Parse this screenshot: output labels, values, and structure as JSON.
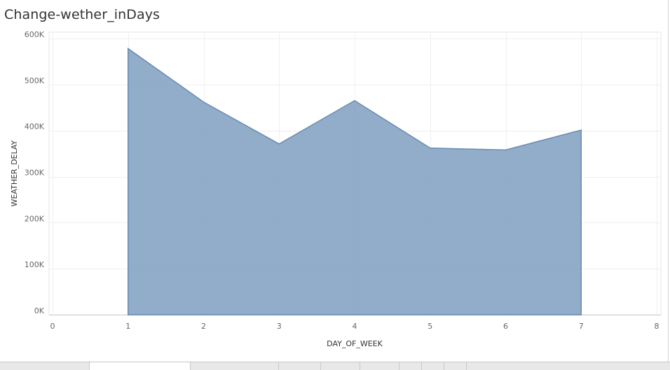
{
  "title": "Change-wether_inDays",
  "chart_data": {
    "type": "area",
    "title": "Change-wether_inDays",
    "xlabel": "DAY_OF_WEEK",
    "ylabel": "WEATHER_DELAY",
    "x": [
      1,
      2,
      3,
      4,
      5,
      6,
      7
    ],
    "values": [
      578000,
      462000,
      371000,
      465000,
      362000,
      358000,
      401000
    ],
    "xlim": [
      0,
      8
    ],
    "ylim": [
      0,
      600000
    ],
    "x_ticks": [
      "0",
      "1",
      "2",
      "3",
      "4",
      "5",
      "6",
      "7",
      "8"
    ],
    "y_ticks": [
      "0K",
      "100K",
      "200K",
      "300K",
      "400K",
      "500K",
      "600K"
    ],
    "y_tick_values": [
      0,
      100000,
      200000,
      300000,
      400000,
      500000,
      600000
    ],
    "grid": true,
    "fill_color": "#7f9fc0",
    "line_color": "#6a8bb0"
  },
  "tabs": [
    {
      "label": "",
      "active": false
    },
    {
      "label": "",
      "active": true
    },
    {
      "label": "",
      "active": false
    },
    {
      "label": "",
      "active": false
    },
    {
      "label": "",
      "active": false
    },
    {
      "label": "",
      "active": false
    },
    {
      "label": "",
      "active": false
    },
    {
      "label": "",
      "active": false
    },
    {
      "label": "",
      "active": false
    }
  ]
}
